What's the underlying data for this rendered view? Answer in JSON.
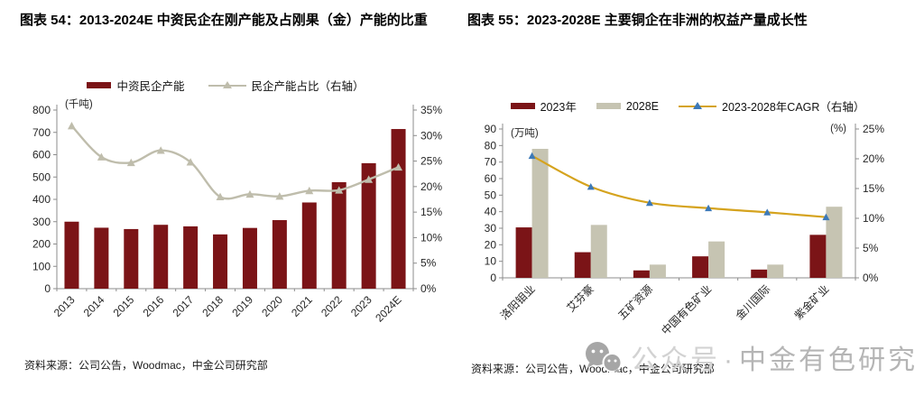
{
  "figures": [
    {
      "title": "图表 54：2013-2024E 中资民企在刚产能及占刚果（金）产能的比重",
      "legend": [
        {
          "label": "中资民企产能",
          "swatch": "bar",
          "color_key": "maroon"
        },
        {
          "label": "民企产能占比（右轴）",
          "swatch": "line-triangle",
          "color_key": "tan"
        }
      ],
      "source": "资料来源：公司公告，Woodmac，中金公司研究部"
    },
    {
      "title": "图表 55：2023-2028E 主要铜企在非洲的权益产量成长性",
      "legend": [
        {
          "label": "2023年",
          "swatch": "bar",
          "color_key": "maroon"
        },
        {
          "label": "2028E",
          "swatch": "bar",
          "color_key": "tanbar"
        },
        {
          "label": "2023-2028年CAGR（右轴）",
          "swatch": "line-triangle",
          "color_key": "gold",
          "marker_color_key": "blue"
        }
      ],
      "source": "资料来源：公司公告，Woodmac，中金公司研究部"
    }
  ],
  "watermark": {
    "icon": "wechat-icon",
    "prefix": "公众号",
    "separator": "·",
    "brand": "中金有色研究"
  },
  "colors": {
    "maroon": "#7B1417",
    "tan": "#BFBDAC",
    "tanbar": "#C6C4B2",
    "gold": "#D5A31E",
    "blue": "#3C79B8",
    "axis": "#8C8C8C",
    "tick_text": "#262626",
    "watermark_gray": "#B5B5B5"
  },
  "chart_data": [
    {
      "type": "bar+line",
      "title": "2013-2024E 中资民企在刚产能及占刚果（金）产能的比重",
      "categories": [
        "2013",
        "2014",
        "2015",
        "2016",
        "2017",
        "2018",
        "2019",
        "2020",
        "2021",
        "2022",
        "2023",
        "2024E"
      ],
      "unit_left": "(千吨)",
      "unit_right": "",
      "left_axis": {
        "min": 0,
        "max": 800,
        "step": 100,
        "suffix": ""
      },
      "right_axis": {
        "min": 0,
        "max": 35,
        "step": 5,
        "suffix": "%"
      },
      "grid": false,
      "legend_position": "top",
      "series": [
        {
          "name": "中资民企产能",
          "type": "bar",
          "axis": "left",
          "color": "#7B1417",
          "values": [
            300,
            273,
            267,
            286,
            279,
            243,
            272,
            307,
            386,
            477,
            562,
            715
          ]
        },
        {
          "name": "民企产能占比（右轴）",
          "type": "line",
          "axis": "right",
          "color": "#BFBDAC",
          "marker": "triangle",
          "marker_color": "#BFBDAC",
          "values": [
            31.9,
            25.8,
            24.7,
            27.1,
            24.8,
            18.0,
            18.5,
            18.1,
            19.2,
            19.3,
            21.4,
            23.8
          ]
        }
      ]
    },
    {
      "type": "bar+line",
      "title": "2023-2028E 主要铜企在非洲的权益产量成长性",
      "categories": [
        "洛阳钼业",
        "艾芬豪",
        "五矿资源",
        "中国有色矿业",
        "金川国际",
        "紫金矿业"
      ],
      "unit_left": "(万吨)",
      "unit_right": "(%)",
      "left_axis": {
        "min": 0,
        "max": 90,
        "step": 10,
        "suffix": ""
      },
      "right_axis": {
        "min": 0,
        "max": 25,
        "step": 5,
        "suffix": "%"
      },
      "grid": false,
      "legend_position": "top",
      "series": [
        {
          "name": "2023年",
          "type": "bar",
          "axis": "left",
          "color": "#7B1417",
          "values": [
            30.5,
            15.5,
            4.5,
            13,
            5,
            26
          ]
        },
        {
          "name": "2028E",
          "type": "bar",
          "axis": "left",
          "color": "#C6C4B2",
          "values": [
            78,
            32,
            8,
            22,
            8,
            43
          ]
        },
        {
          "name": "2023-2028年CAGR（右轴）",
          "type": "line",
          "axis": "right",
          "color": "#D5A31E",
          "marker": "triangle",
          "marker_color": "#3C79B8",
          "values": [
            20.5,
            15.3,
            12.6,
            11.7,
            11.0,
            10.2
          ]
        }
      ]
    }
  ]
}
